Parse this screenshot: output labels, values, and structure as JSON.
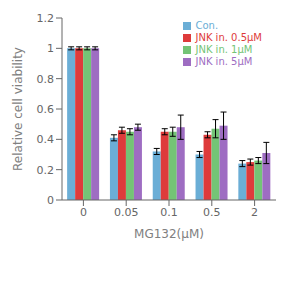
{
  "chart_data": {
    "type": "bar",
    "categories": [
      "0",
      "0.05",
      "0.1",
      "0.5",
      "2"
    ],
    "xlabel": "MG132(μM)",
    "ylabel": "Relative cell viability",
    "ylim": [
      0,
      1.2
    ],
    "yticks": [
      0,
      0.2,
      0.4,
      0.6,
      0.8,
      1,
      1.2
    ],
    "series": [
      {
        "name": "Con.",
        "color": "#6baed6",
        "values": [
          1.0,
          0.41,
          0.32,
          0.3,
          0.24
        ],
        "errors": [
          0.01,
          0.02,
          0.02,
          0.02,
          0.02
        ]
      },
      {
        "name": "JNK in. 0.5μM",
        "color": "#de3b3b",
        "values": [
          1.0,
          0.46,
          0.45,
          0.43,
          0.25
        ],
        "errors": [
          0.01,
          0.02,
          0.02,
          0.02,
          0.02
        ]
      },
      {
        "name": "JNK in. 1μM",
        "color": "#74c476",
        "values": [
          1.0,
          0.45,
          0.45,
          0.47,
          0.26
        ],
        "errors": [
          0.01,
          0.02,
          0.03,
          0.06,
          0.02
        ]
      },
      {
        "name": "JNK in. 5μM",
        "color": "#9e6dc2",
        "values": [
          1.0,
          0.48,
          0.48,
          0.49,
          0.31
        ],
        "errors": [
          0.01,
          0.02,
          0.08,
          0.09,
          0.07
        ]
      }
    ],
    "legend": "upper right",
    "grid": false
  }
}
